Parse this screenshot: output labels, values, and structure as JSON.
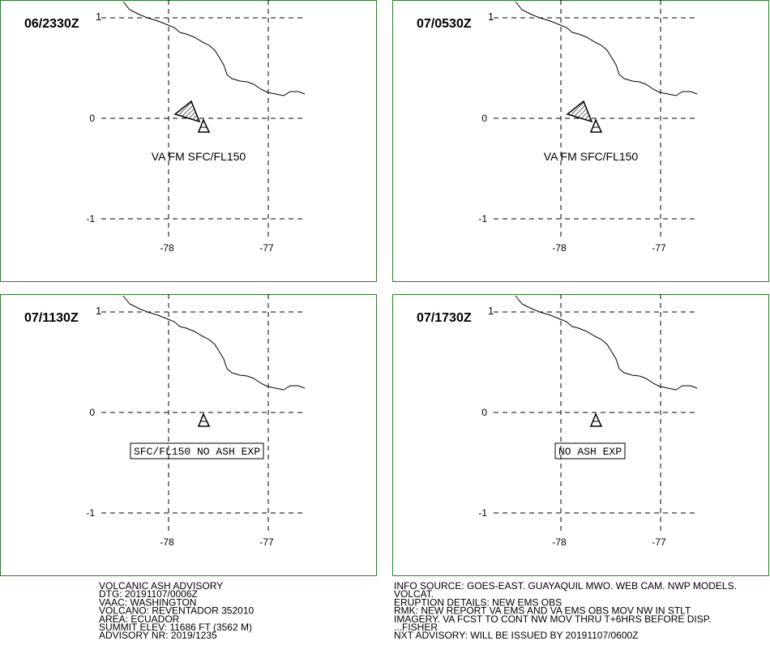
{
  "panels": [
    {
      "time": "06/2330Z",
      "lat_labels": [
        "1",
        "0",
        "-1"
      ],
      "lon_labels": [
        "-78",
        "-77"
      ],
      "annotation": "VA FM SFC/FL150",
      "annotation_style": "plain",
      "ash_area": true
    },
    {
      "time": "07/0530Z",
      "lat_labels": [
        "1",
        "0",
        "-1"
      ],
      "lon_labels": [
        "-78",
        "-77"
      ],
      "annotation": "VA FM SFC/FL150",
      "annotation_style": "plain",
      "ash_area": true
    },
    {
      "time": "07/1130Z",
      "lat_labels": [
        "1",
        "0",
        "-1"
      ],
      "lon_labels": [
        "-78",
        "-77"
      ],
      "annotation": "SFC/FL150 NO ASH EXP",
      "annotation_style": "boxed",
      "ash_area": false
    },
    {
      "time": "07/1730Z",
      "lat_labels": [
        "1",
        "0",
        "-1"
      ],
      "lon_labels": [
        "-78",
        "-77"
      ],
      "annotation": "NO ASH EXP",
      "annotation_style": "boxed",
      "ash_area": false
    }
  ],
  "advisory_left": [
    "VOLCANIC ASH ADVISORY",
    "DTG: 20191107/0006Z",
    "VAAC: WASHINGTON",
    "VOLCANO: REVENTADOR 352010",
    "AREA: ECUADOR",
    "SUMMIT ELEV: 11686 FT (3562 M)",
    "ADVISORY NR: 2019/1235"
  ],
  "advisory_right": [
    "INFO SOURCE: GOES-EAST. GUAYAQUIL MWO. WEB CAM. NWP MODELS.",
    "VOLCAT.",
    "ERUPTION DETAILS: NEW EMS OBS",
    "RMK: NEW REPORT VA EMS AND VA EMS OBS MOV NW IN STLT",
    "IMAGERY. VA FCST TO CONT NW MOV THRU T+6HRS BEFORE DISP.",
    "...FISHER",
    "NXT ADVISORY: WILL BE ISSUED BY 20191107/0600Z"
  ]
}
